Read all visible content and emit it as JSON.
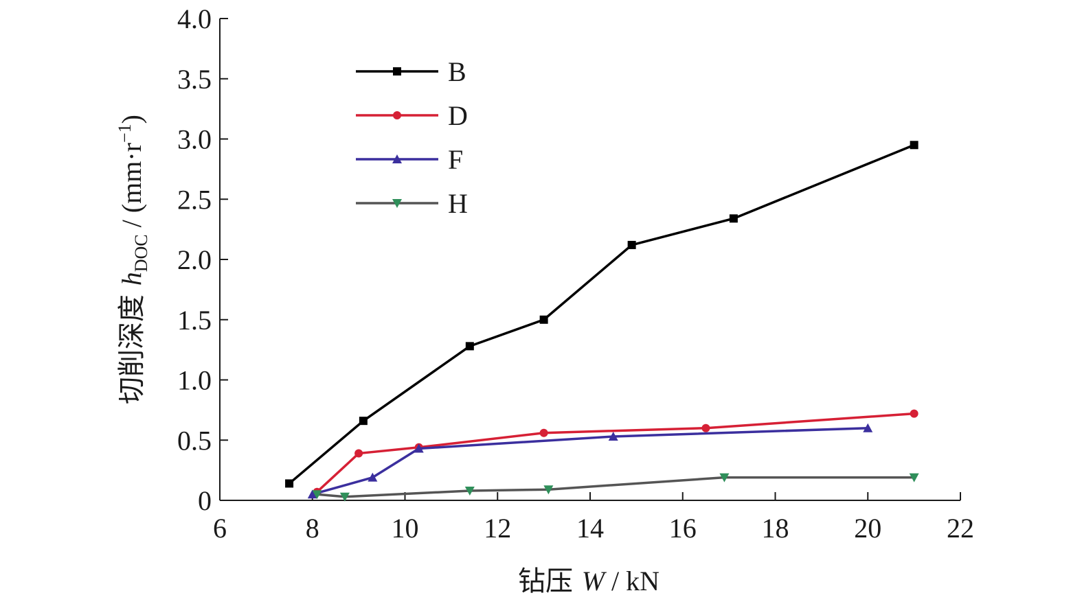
{
  "chart_data": {
    "type": "line",
    "xlabel": {
      "prefix": "钻压 ",
      "symbol": "W",
      "unit": " / kN"
    },
    "ylabel": {
      "prefix": "切削深度 ",
      "symbol": "h",
      "subscript": "DOC",
      "unit_open": " / (mm·r",
      "unit_sup": "−1",
      "unit_close": ")"
    },
    "xlim": [
      6,
      22
    ],
    "ylim": [
      0,
      4.0
    ],
    "x_ticks": [
      6,
      8,
      10,
      12,
      14,
      16,
      18,
      20,
      22
    ],
    "x_tick_labels": [
      "6",
      "8",
      "10",
      "12",
      "14",
      "16",
      "18",
      "20",
      "22"
    ],
    "y_ticks": [
      0,
      0.5,
      1.0,
      1.5,
      2.0,
      2.5,
      3.0,
      3.5,
      4.0
    ],
    "y_tick_labels": [
      "0",
      "0.5",
      "1.0",
      "1.5",
      "2.0",
      "2.5",
      "3.0",
      "3.5",
      "4.0"
    ],
    "grid": false,
    "legend_position": "top-left",
    "series": [
      {
        "name": "B",
        "color": "#000000",
        "marker": "square",
        "x": [
          7.5,
          9.1,
          11.4,
          13.0,
          14.9,
          17.1,
          21.0
        ],
        "y": [
          0.14,
          0.66,
          1.28,
          1.5,
          2.12,
          2.34,
          2.95
        ]
      },
      {
        "name": "D",
        "color": "#d62035",
        "marker": "circle",
        "x": [
          8.1,
          9.0,
          10.3,
          13.0,
          16.5,
          21.0
        ],
        "y": [
          0.07,
          0.39,
          0.44,
          0.56,
          0.6,
          0.72
        ]
      },
      {
        "name": "F",
        "color": "#3b2f9e",
        "marker": "triangle-up",
        "x": [
          8.0,
          9.3,
          10.3,
          14.5,
          20.0
        ],
        "y": [
          0.05,
          0.19,
          0.43,
          0.53,
          0.6
        ]
      },
      {
        "name": "H",
        "color": "#555555",
        "marker_color": "#2f8f5a",
        "marker": "triangle-down",
        "x": [
          8.1,
          8.7,
          11.4,
          13.1,
          16.9,
          21.0
        ],
        "y": [
          0.05,
          0.03,
          0.08,
          0.09,
          0.19,
          0.19
        ]
      }
    ]
  }
}
